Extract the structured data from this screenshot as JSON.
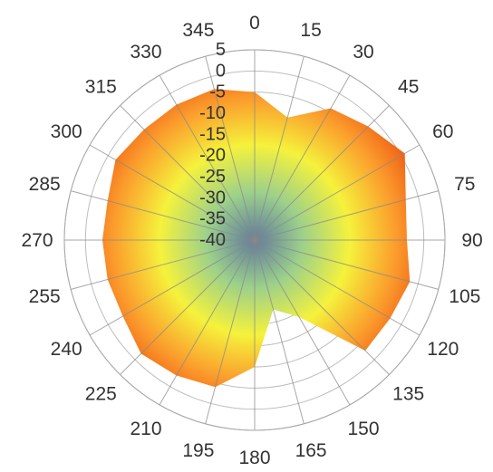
{
  "chart_data": {
    "type": "radar",
    "title": "",
    "grid": true,
    "angles": [
      0,
      15,
      30,
      45,
      60,
      75,
      90,
      105,
      120,
      135,
      150,
      165,
      180,
      195,
      210,
      225,
      240,
      255,
      270,
      285,
      300,
      315,
      330,
      345
    ],
    "angle_labels": [
      "0",
      "15",
      "30",
      "45",
      "60",
      "75",
      "90",
      "105",
      "120",
      "135",
      "150",
      "165",
      "180",
      "195",
      "210",
      "225",
      "240",
      "255",
      "270",
      "285",
      "300",
      "315",
      "330",
      "345"
    ],
    "radial_ticks": [
      "5",
      "0",
      "-5",
      "-10",
      "-15",
      "-20",
      "-25",
      "-30",
      "-35",
      "-40"
    ],
    "rlim": [
      -40,
      5
    ],
    "series": [
      {
        "values": [
          -5,
          -10,
          -4,
          -2,
          1,
          -3,
          -4,
          -2,
          -3,
          -3,
          -19,
          -23,
          -10,
          -4,
          -3,
          -2,
          -4,
          -4,
          -4,
          -4,
          -2,
          -3,
          -3,
          -3
        ]
      }
    ],
    "fill_gradient": [
      "#5e7a9e",
      "#9cd08b",
      "#f5f23c",
      "#fb9a2c",
      "#e8420a"
    ]
  }
}
